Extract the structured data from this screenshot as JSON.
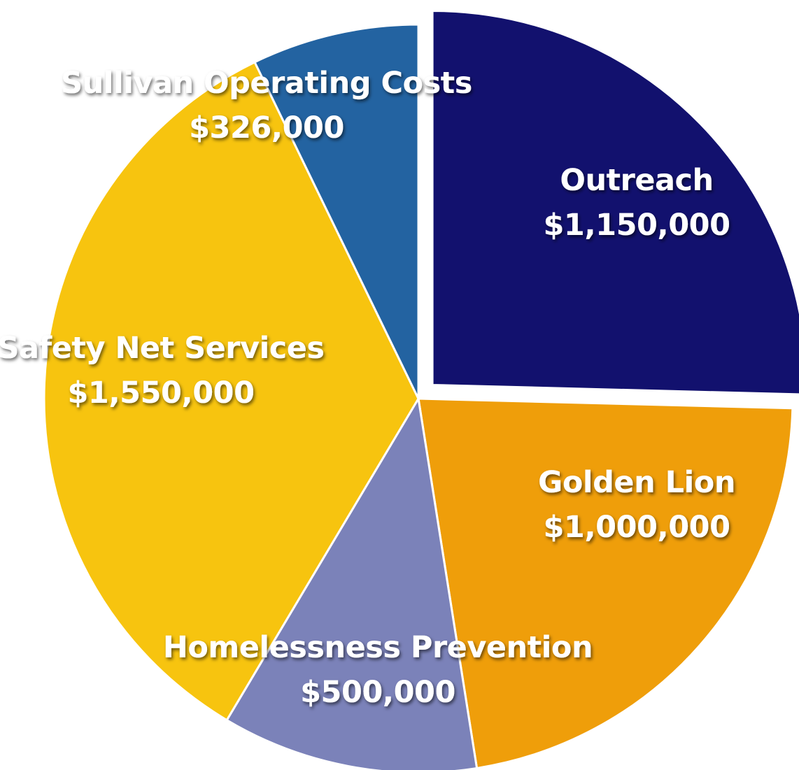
{
  "chart_data": {
    "type": "pie",
    "title": "",
    "slices": [
      {
        "label": "Outreach",
        "value_text": "$1,150,000",
        "value": 1150000,
        "color": "#12116e",
        "text_color": "#ffffff",
        "exploded": true
      },
      {
        "label": "Golden Lion",
        "value_text": "$1,000,000",
        "value": 1000000,
        "color": "#ef9e0a",
        "text_color": "#ffffff",
        "exploded": false
      },
      {
        "label": "Homelessness Prevention",
        "value_text": "$500,000",
        "value": 500000,
        "color": "#7b82b9",
        "text_color": "#ffffff",
        "exploded": false
      },
      {
        "label": "Safety Net Services",
        "value_text": "$1,550,000",
        "value": 1550000,
        "color": "#f7c40f",
        "text_color": "#ffffff",
        "exploded": false
      },
      {
        "label": "Sullivan Operating Costs",
        "value_text": "$326,000",
        "value": 326000,
        "color": "#2363a1",
        "text_color": "#ffffff",
        "exploded": false
      }
    ]
  }
}
